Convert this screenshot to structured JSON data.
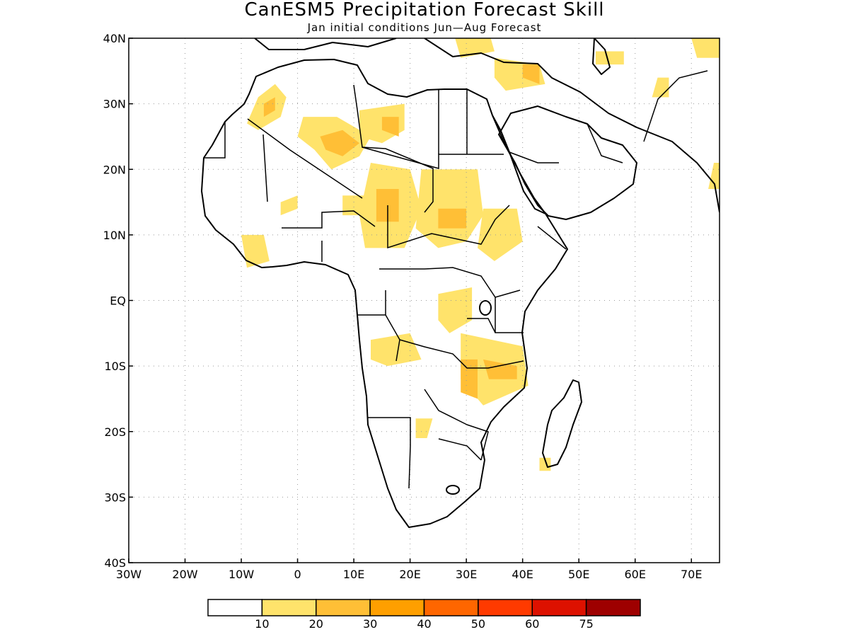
{
  "title": "CanESM5 Precipitation Forecast Skill",
  "subtitle": "Jan initial conditions  Jun—Aug Forecast",
  "map": {
    "lon_range": [
      -30,
      75
    ],
    "lat_range": [
      -40,
      40
    ],
    "x_ticks": [
      {
        "lon": -30,
        "label": "30W"
      },
      {
        "lon": -20,
        "label": "20W"
      },
      {
        "lon": -10,
        "label": "10W"
      },
      {
        "lon": 0,
        "label": "0"
      },
      {
        "lon": 10,
        "label": "10E"
      },
      {
        "lon": 20,
        "label": "20E"
      },
      {
        "lon": 30,
        "label": "30E"
      },
      {
        "lon": 40,
        "label": "40E"
      },
      {
        "lon": 50,
        "label": "50E"
      },
      {
        "lon": 60,
        "label": "60E"
      },
      {
        "lon": 70,
        "label": "70E"
      }
    ],
    "y_ticks": [
      {
        "lat": 40,
        "label": "40N"
      },
      {
        "lat": 30,
        "label": "30N"
      },
      {
        "lat": 20,
        "label": "20N"
      },
      {
        "lat": 10,
        "label": "10N"
      },
      {
        "lat": 0,
        "label": "EQ"
      },
      {
        "lat": -10,
        "label": "10S"
      },
      {
        "lat": -20,
        "label": "20S"
      },
      {
        "lat": -30,
        "label": "30S"
      },
      {
        "lat": -40,
        "label": "40S"
      }
    ],
    "skill_regions": [
      {
        "level": 1,
        "points": [
          [
            -7,
            31
          ],
          [
            -4,
            33
          ],
          [
            -2,
            31
          ],
          [
            -3,
            28
          ],
          [
            -7,
            26
          ],
          [
            -9,
            27
          ]
        ]
      },
      {
        "level": 2,
        "points": [
          [
            -6,
            30
          ],
          [
            -4,
            31
          ],
          [
            -4,
            29
          ],
          [
            -6,
            28
          ]
        ]
      },
      {
        "level": 1,
        "points": [
          [
            1,
            28
          ],
          [
            7,
            28
          ],
          [
            13,
            25
          ],
          [
            11,
            22
          ],
          [
            6,
            20
          ],
          [
            3,
            23
          ],
          [
            0,
            25
          ]
        ]
      },
      {
        "level": 2,
        "points": [
          [
            4,
            25
          ],
          [
            8,
            26
          ],
          [
            11,
            24
          ],
          [
            8,
            22
          ],
          [
            5,
            23
          ]
        ]
      },
      {
        "level": 1,
        "points": [
          [
            11,
            29
          ],
          [
            19,
            30
          ],
          [
            19,
            26
          ],
          [
            15,
            24
          ],
          [
            11,
            25
          ]
        ]
      },
      {
        "level": 2,
        "points": [
          [
            15,
            28
          ],
          [
            18,
            28
          ],
          [
            18,
            25
          ],
          [
            15,
            26
          ]
        ]
      },
      {
        "level": 1,
        "points": [
          [
            13,
            21
          ],
          [
            20,
            20
          ],
          [
            22,
            14
          ],
          [
            19,
            8
          ],
          [
            12,
            8
          ],
          [
            11,
            13
          ]
        ]
      },
      {
        "level": 2,
        "points": [
          [
            14,
            17
          ],
          [
            18,
            17
          ],
          [
            18,
            12
          ],
          [
            14,
            12
          ]
        ]
      },
      {
        "level": 1,
        "points": [
          [
            22,
            20
          ],
          [
            32,
            20
          ],
          [
            33,
            13
          ],
          [
            30,
            9
          ],
          [
            25,
            8
          ],
          [
            21,
            11
          ]
        ]
      },
      {
        "level": 2,
        "points": [
          [
            25,
            14
          ],
          [
            30,
            14
          ],
          [
            30,
            11
          ],
          [
            25,
            11
          ]
        ]
      },
      {
        "level": 1,
        "points": [
          [
            8,
            16
          ],
          [
            13,
            16
          ],
          [
            13,
            13
          ],
          [
            8,
            13
          ]
        ]
      },
      {
        "level": 1,
        "points": [
          [
            -3,
            15
          ],
          [
            0,
            16
          ],
          [
            0,
            14
          ],
          [
            -3,
            13
          ]
        ]
      },
      {
        "level": 1,
        "points": [
          [
            33,
            14
          ],
          [
            39,
            14
          ],
          [
            40,
            9
          ],
          [
            35,
            6
          ],
          [
            32,
            8
          ]
        ]
      },
      {
        "level": 1,
        "points": [
          [
            -10,
            10
          ],
          [
            -6,
            10
          ],
          [
            -5,
            6
          ],
          [
            -9,
            5
          ]
        ]
      },
      {
        "level": 1,
        "points": [
          [
            25,
            1
          ],
          [
            31,
            2
          ],
          [
            31,
            -3
          ],
          [
            27,
            -5
          ],
          [
            25,
            -3
          ]
        ]
      },
      {
        "level": 1,
        "points": [
          [
            29,
            -5
          ],
          [
            40,
            -7
          ],
          [
            41,
            -13
          ],
          [
            33,
            -16
          ],
          [
            29,
            -12
          ]
        ]
      },
      {
        "level": 2,
        "points": [
          [
            33,
            -9
          ],
          [
            39,
            -10
          ],
          [
            39,
            -12
          ],
          [
            34,
            -12
          ]
        ]
      },
      {
        "level": 2,
        "points": [
          [
            29,
            -9
          ],
          [
            32,
            -9
          ],
          [
            32,
            -15
          ],
          [
            29,
            -14
          ]
        ]
      },
      {
        "level": 1,
        "points": [
          [
            13,
            -6
          ],
          [
            20,
            -5
          ],
          [
            22,
            -9
          ],
          [
            16,
            -10
          ],
          [
            13,
            -9
          ]
        ]
      },
      {
        "level": 1,
        "points": [
          [
            21,
            -18
          ],
          [
            24,
            -18
          ],
          [
            23,
            -21
          ],
          [
            21,
            -21
          ]
        ]
      },
      {
        "level": 1,
        "points": [
          [
            43,
            -24
          ],
          [
            45,
            -24
          ],
          [
            45,
            -26
          ],
          [
            43,
            -26
          ]
        ]
      },
      {
        "level": 1,
        "points": [
          [
            28,
            40
          ],
          [
            34,
            41
          ],
          [
            35,
            38
          ],
          [
            29,
            37
          ]
        ]
      },
      {
        "level": 1,
        "points": [
          [
            35,
            37
          ],
          [
            43,
            36
          ],
          [
            44,
            33
          ],
          [
            37,
            32
          ],
          [
            35,
            34
          ]
        ]
      },
      {
        "level": 2,
        "points": [
          [
            40,
            36
          ],
          [
            43,
            36
          ],
          [
            43,
            33
          ],
          [
            40,
            34
          ]
        ]
      },
      {
        "level": 1,
        "points": [
          [
            53,
            38
          ],
          [
            58,
            38
          ],
          [
            58,
            36
          ],
          [
            53,
            36
          ]
        ]
      },
      {
        "level": 1,
        "points": [
          [
            64,
            34
          ],
          [
            66,
            34
          ],
          [
            66,
            31
          ],
          [
            63,
            31
          ]
        ]
      },
      {
        "level": 1,
        "points": [
          [
            70,
            40
          ],
          [
            75,
            40
          ],
          [
            75,
            37
          ],
          [
            71,
            37
          ]
        ]
      },
      {
        "level": 1,
        "points": [
          [
            74,
            21
          ],
          [
            75,
            21
          ],
          [
            75,
            17
          ],
          [
            73,
            17
          ]
        ]
      }
    ]
  },
  "colorbar": {
    "colors": [
      "#ffffff",
      "#ffe36b",
      "#ffbf36",
      "#ff9f00",
      "#ff6600",
      "#ff3a00",
      "#dd1100",
      "#9e0000"
    ],
    "labels": [
      "10",
      "20",
      "30",
      "40",
      "50",
      "60",
      "75"
    ]
  }
}
